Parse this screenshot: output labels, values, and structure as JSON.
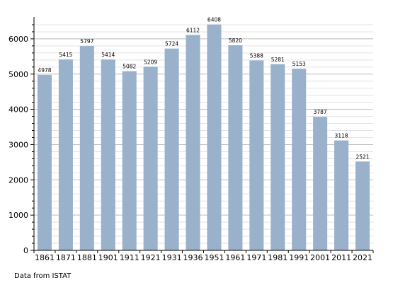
{
  "chart_data": {
    "type": "bar",
    "categories": [
      "1861",
      "1871",
      "1881",
      "1901",
      "1911",
      "1921",
      "1931",
      "1936",
      "1951",
      "1961",
      "1971",
      "1981",
      "1991",
      "2001",
      "2011",
      "2021"
    ],
    "values": [
      4978,
      5415,
      5797,
      5414,
      5082,
      5209,
      5724,
      6112,
      6408,
      5820,
      5388,
      5281,
      5153,
      3787,
      3118,
      2521
    ],
    "y_ticks": [
      0,
      1000,
      2000,
      3000,
      4000,
      5000,
      6000
    ],
    "ylim": [
      0,
      6500
    ],
    "grid": true,
    "bar_color": "#9ab1cb",
    "grid_color": "#cccccc"
  },
  "footnote": "Data from ISTAT"
}
